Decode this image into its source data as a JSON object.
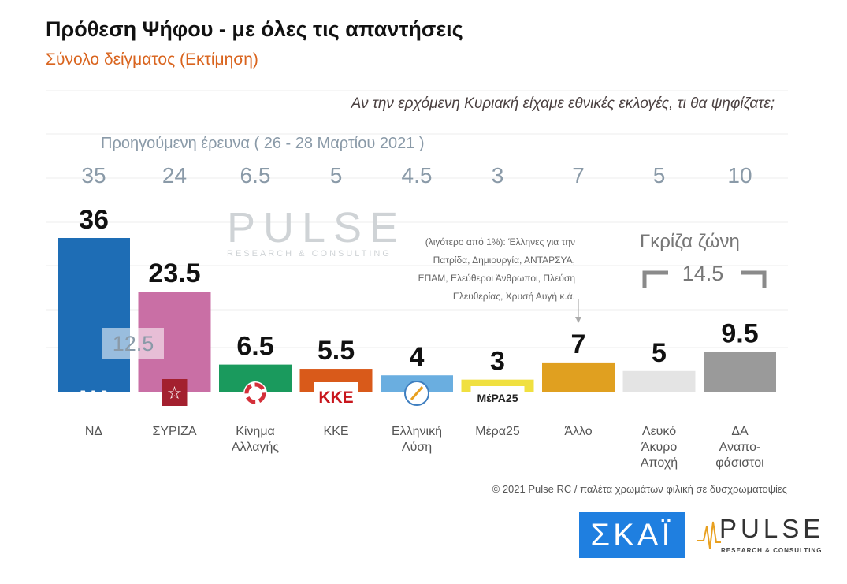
{
  "title": "Πρόθεση Ψήφου - με όλες τις απαντήσεις",
  "subtitle": "Σύνολο δείγματος    (Εκτίμηση)",
  "question": "Αν την ερχόμενη Κυριακή είχαμε εθνικές εκλογές, τι θα ψηφίζατε;",
  "previous_caption": "Προηγούμενη έρευνα   ( 26 - 28 Μαρτίου 2021 )",
  "note_lines": [
    "(λιγότερο από 1%): Έλληνες για την",
    "Πατρίδα, Δημιουργία, ΑΝΤΑΡΣΥΑ,",
    "ΕΠΑΜ, Ελεύθεροι Άνθρωποι, Πλεύση",
    "Ελευθερίας, Χρυσή Αυγή κ.ά."
  ],
  "gray_zone_label": "Γκρίζα ζώνη",
  "gray_zone_value": "14.5",
  "undecided_overlay": "12.5",
  "watermark": {
    "main": "PULSE",
    "sub": "RESEARCH & CONSULTING"
  },
  "copyright": "© 2021 Pulse RC   /   παλέτα χρωμάτων φιλική σε δυσχρωματοψίες",
  "logos": {
    "skai": "ΣΚΑΪ",
    "pulse_main": "PULSE",
    "pulse_sub": "RESEARCH & CONSULTING"
  },
  "party_marks": [
    "ΝΔ",
    "☆",
    "",
    "ΚΚΕ",
    "",
    "ΜέΡΑ25",
    "",
    "",
    ""
  ],
  "chart_data": {
    "type": "bar",
    "categories": [
      [
        "ΝΔ"
      ],
      [
        "ΣΥΡΙΖΑ"
      ],
      [
        "Κίνημα",
        "Αλλαγής"
      ],
      [
        "ΚΚΕ"
      ],
      [
        "Ελληνική",
        "Λύση"
      ],
      [
        "Μέρα25"
      ],
      [
        "Άλλο"
      ],
      [
        "Λευκό",
        "Άκυρο",
        "Αποχή"
      ],
      [
        "ΔΑ",
        "Αναπο-",
        "φάσιστοι"
      ]
    ],
    "values": [
      36,
      23.5,
      6.5,
      5.5,
      4,
      3,
      7,
      5,
      9.5
    ],
    "value_labels": [
      "36",
      "23.5",
      "6.5",
      "5.5",
      "4",
      "3",
      "7",
      "5",
      "9.5"
    ],
    "previous_values": [
      35,
      24,
      6.5,
      5,
      4.5,
      3,
      7,
      5,
      10
    ],
    "previous_labels": [
      "35",
      "24",
      "6.5",
      "5",
      "4.5",
      "3",
      "7",
      "5",
      "10"
    ],
    "colors": [
      "#1e6db5",
      "#c96fa5",
      "#1a9a5d",
      "#d95a1a",
      "#6aaee0",
      "#f0e040",
      "#e0a020",
      "#e4e4e4",
      "#9a9a9a"
    ],
    "ylim": [
      0,
      36
    ],
    "grid": true
  }
}
